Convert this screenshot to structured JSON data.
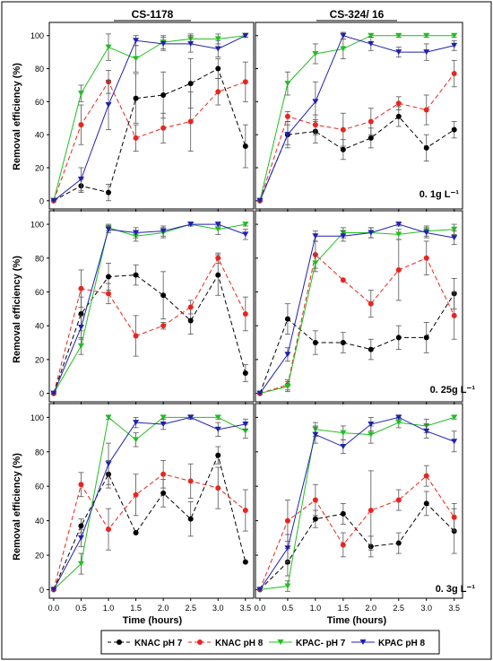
{
  "figure": {
    "column_titles": [
      "CS-1178",
      "CS-324/ 16"
    ],
    "ylabel": "Removal  efficiency  (%)",
    "xlabel": "Time  (hours)",
    "row_labels": [
      "0. 1g  L⁻¹",
      "0. 25g  L⁻¹",
      "0. 3g  L⁻¹"
    ],
    "x_ticks": [
      "0.0",
      "0.5",
      "1.0",
      "1.5",
      "2.0",
      "2.5",
      "3.0",
      "3.5"
    ],
    "y_ticks": [
      "0",
      "20",
      "40",
      "60",
      "80",
      "100"
    ],
    "legend": [
      {
        "label": "KNAC  pH  7",
        "color": "#000000",
        "marker": "circle",
        "dash": true
      },
      {
        "label": "KNAC  pH  8",
        "color": "#e8251f",
        "marker": "circle",
        "dash": true
      },
      {
        "label": "KPAC-  pH  7",
        "color": "#1fbf1f",
        "marker": "triangle-down",
        "dash": false
      },
      {
        "label": "KPAC  pH  8",
        "color": "#2020b0",
        "marker": "triangle-down",
        "dash": false
      }
    ]
  },
  "chart_data": [
    {
      "type": "line",
      "panel": "CS-1178 / 0.1g L-1",
      "x": [
        0,
        0.5,
        1,
        1.5,
        2,
        2.5,
        3,
        3.5
      ],
      "xlim": [
        0,
        3.5
      ],
      "ylim": [
        -5,
        108
      ],
      "series": [
        {
          "name": "KNAC pH 7",
          "values": [
            0,
            9,
            5,
            62,
            64,
            71,
            80,
            33
          ],
          "err": [
            0,
            4,
            5,
            15,
            14,
            15,
            6,
            13
          ]
        },
        {
          "name": "KNAC pH 8",
          "values": [
            0,
            46,
            72,
            38,
            44,
            48,
            66,
            72
          ],
          "err": [
            0,
            12,
            7,
            8,
            9,
            18,
            8,
            12
          ]
        },
        {
          "name": "KPAC- pH 7",
          "values": [
            0,
            65,
            93,
            86,
            96,
            98,
            98,
            100
          ],
          "err": [
            0,
            5,
            8,
            8,
            4,
            3,
            3,
            1
          ]
        },
        {
          "name": "KPAC pH 8",
          "values": [
            0,
            13,
            58,
            97,
            95,
            95,
            92,
            100
          ],
          "err": [
            0,
            7,
            15,
            3,
            4,
            5,
            5,
            1
          ]
        }
      ]
    },
    {
      "type": "line",
      "panel": "CS-324/16 / 0.1g L-1",
      "x": [
        0,
        0.5,
        1,
        1.5,
        2,
        2.5,
        3,
        3.5
      ],
      "xlim": [
        0,
        3.5
      ],
      "ylim": [
        -5,
        108
      ],
      "series": [
        {
          "name": "KNAC pH 7",
          "values": [
            0,
            40,
            42,
            31,
            38,
            51,
            32,
            43
          ],
          "err": [
            0,
            8,
            7,
            6,
            6,
            6,
            8,
            5
          ]
        },
        {
          "name": "KNAC pH 8",
          "values": [
            0,
            51,
            46,
            43,
            48,
            59,
            55,
            77
          ],
          "err": [
            0,
            3,
            6,
            10,
            8,
            4,
            9,
            8
          ]
        },
        {
          "name": "KPAC- pH 7",
          "values": [
            0,
            71,
            89,
            92,
            100,
            100,
            100,
            100
          ],
          "err": [
            0,
            7,
            6,
            6,
            1,
            1,
            1,
            1
          ]
        },
        {
          "name": "KPAC pH 8",
          "values": [
            0,
            40,
            60,
            100,
            95,
            90,
            90,
            94
          ],
          "err": [
            0,
            6,
            12,
            2,
            4,
            3,
            5,
            3
          ]
        }
      ]
    },
    {
      "type": "line",
      "panel": "CS-1178 / 0.25g L-1",
      "x": [
        0,
        0.5,
        1,
        1.5,
        2,
        2.5,
        3,
        3.5
      ],
      "xlim": [
        0,
        3.5
      ],
      "ylim": [
        -5,
        108
      ],
      "series": [
        {
          "name": "KNAC pH 7",
          "values": [
            0,
            47,
            69,
            70,
            58,
            43,
            70,
            12
          ],
          "err": [
            0,
            10,
            8,
            6,
            14,
            8,
            12,
            5
          ]
        },
        {
          "name": "KNAC pH 8",
          "values": [
            0,
            62,
            59,
            34,
            40,
            51,
            80,
            47
          ],
          "err": [
            0,
            11,
            6,
            12,
            2,
            4,
            3,
            10
          ]
        },
        {
          "name": "KPAC- pH 7",
          "values": [
            0,
            28,
            98,
            93,
            95,
            100,
            97,
            100
          ],
          "err": [
            0,
            5,
            2,
            3,
            3,
            1,
            3,
            1
          ]
        },
        {
          "name": "KPAC pH 8",
          "values": [
            0,
            39,
            97,
            95,
            96,
            100,
            100,
            94
          ],
          "err": [
            0,
            7,
            2,
            3,
            3,
            1,
            1,
            3
          ]
        }
      ]
    },
    {
      "type": "line",
      "panel": "CS-324/16 / 0.25g L-1",
      "x": [
        0,
        0.5,
        1,
        1.5,
        2,
        2.5,
        3,
        3.5
      ],
      "xlim": [
        0,
        3.5
      ],
      "ylim": [
        -5,
        108
      ],
      "series": [
        {
          "name": "KNAC pH 7",
          "values": [
            0,
            44,
            30,
            30,
            26,
            33,
            33,
            59
          ],
          "err": [
            0,
            9,
            7,
            6,
            6,
            7,
            9,
            9
          ]
        },
        {
          "name": "KNAC pH 8",
          "values": [
            0,
            5,
            82,
            67,
            53,
            73,
            80,
            46
          ],
          "err": [
            0,
            3,
            8,
            0,
            8,
            18,
            10,
            14
          ]
        },
        {
          "name": "KPAC- pH 7",
          "values": [
            0,
            4,
            77,
            95,
            95,
            94,
            96,
            97
          ],
          "err": [
            0,
            3,
            5,
            3,
            3,
            3,
            3,
            3
          ]
        },
        {
          "name": "KPAC pH 8",
          "values": [
            0,
            23,
            93,
            93,
            95,
            100,
            95,
            92
          ],
          "err": [
            0,
            4,
            3,
            3,
            3,
            1,
            3,
            4
          ]
        }
      ]
    },
    {
      "type": "line",
      "panel": "CS-1178 / 0.3g L-1",
      "x": [
        0,
        0.5,
        1,
        1.5,
        2,
        2.5,
        3,
        3.5
      ],
      "xlim": [
        0,
        3.5
      ],
      "ylim": [
        -5,
        108
      ],
      "series": [
        {
          "name": "KNAC pH 7",
          "values": [
            0,
            37,
            67,
            33,
            56,
            41,
            78,
            16
          ],
          "err": [
            0,
            4,
            8,
            0,
            8,
            10,
            5,
            0
          ]
        },
        {
          "name": "KNAC pH 8",
          "values": [
            0,
            61,
            35,
            55,
            67,
            63,
            59,
            46
          ],
          "err": [
            0,
            7,
            12,
            12,
            8,
            10,
            12,
            12
          ]
        },
        {
          "name": "KPAC- pH 7",
          "values": [
            0,
            15,
            100,
            87,
            100,
            100,
            100,
            92
          ],
          "err": [
            0,
            6,
            1,
            4,
            1,
            1,
            1,
            4
          ]
        },
        {
          "name": "KPAC pH 8",
          "values": [
            0,
            30,
            73,
            97,
            96,
            100,
            93,
            96
          ],
          "err": [
            0,
            5,
            12,
            3,
            3,
            1,
            4,
            3
          ]
        }
      ]
    },
    {
      "type": "line",
      "panel": "CS-324/16 / 0.3g L-1",
      "x": [
        0,
        0.5,
        1,
        1.5,
        2,
        2.5,
        3,
        3.5
      ],
      "xlim": [
        0,
        3.5
      ],
      "ylim": [
        -5,
        108
      ],
      "series": [
        {
          "name": "KNAC pH 7",
          "values": [
            0,
            16,
            41,
            44,
            25,
            27,
            50,
            34
          ],
          "err": [
            0,
            8,
            5,
            6,
            6,
            6,
            7,
            13
          ]
        },
        {
          "name": "KNAC pH 8",
          "values": [
            0,
            40,
            52,
            26,
            46,
            52,
            66,
            42
          ],
          "err": [
            0,
            12,
            9,
            7,
            23,
            6,
            6,
            8
          ]
        },
        {
          "name": "KPAC- pH 7",
          "values": [
            0,
            2,
            93,
            91,
            90,
            97,
            95,
            100
          ],
          "err": [
            0,
            3,
            4,
            4,
            5,
            3,
            4,
            1
          ]
        },
        {
          "name": "KPAC pH 8",
          "values": [
            0,
            24,
            90,
            83,
            96,
            100,
            92,
            86
          ],
          "err": [
            0,
            8,
            5,
            4,
            4,
            1,
            4,
            6
          ]
        }
      ]
    }
  ]
}
